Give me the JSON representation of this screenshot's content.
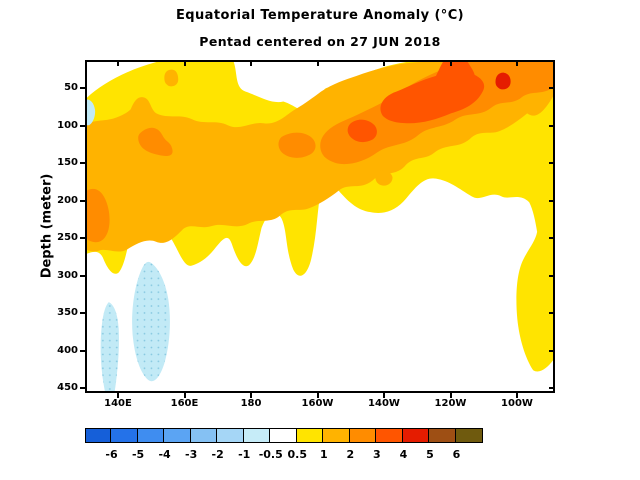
{
  "title": "Equatorial Temperature Anomaly (°C)",
  "subtitle": "Pentad centered on 27 JUN 2018",
  "y_axis": {
    "label": "Depth (meter)",
    "ticks": [
      "50",
      "100",
      "150",
      "200",
      "250",
      "300",
      "350",
      "400",
      "450"
    ]
  },
  "x_axis": {
    "ticks": [
      "140E",
      "160E",
      "180",
      "160W",
      "140W",
      "120W",
      "100W"
    ]
  },
  "colorbar": {
    "labels": [
      "-6",
      "-5",
      "-4",
      "-3",
      "-2",
      "-1",
      "-0.5",
      "0.5",
      "1",
      "2",
      "3",
      "4",
      "5",
      "6"
    ],
    "colors": [
      "#155fd9",
      "#2472e9",
      "#3f8df0",
      "#5ba4f3",
      "#85c1f3",
      "#a5d6f6",
      "#c6ecf8",
      "#ffffff",
      "#ffe400",
      "#ffb300",
      "#ff8c00",
      "#ff5500",
      "#e51c00",
      "#9e4f14",
      "#6f5a0e"
    ]
  },
  "colors": {
    "white": "#ffffff",
    "yellow": "#ffe400",
    "orange": "#ffb300",
    "orange2": "#ff8c00",
    "orange3": "#ff5500",
    "red": "#e51c00",
    "pale_blue": "#c2eaf6"
  },
  "chart_data": {
    "type": "filled_contour",
    "title": "Equatorial Temperature Anomaly (°C)",
    "subtitle": "Pentad centered on 27 JUN 2018",
    "units": "°C",
    "ylabel": "Depth (meter)",
    "y_ticks": [
      50,
      100,
      150,
      200,
      250,
      300,
      350,
      400,
      450
    ],
    "y_range_approx_m": [
      10,
      455
    ],
    "x_ticks": [
      "140E",
      "160E",
      "180",
      "160W",
      "140W",
      "120W",
      "100W"
    ],
    "x_range_approx": [
      "130E",
      "95W"
    ],
    "contour_levels": [
      -6,
      -5,
      -4,
      -3,
      -2,
      -1,
      -0.5,
      0.5,
      1,
      2,
      3,
      4,
      5,
      6
    ],
    "palette": [
      "#155fd9",
      "#2472e9",
      "#3f8df0",
      "#5ba4f3",
      "#85c1f3",
      "#a5d6f6",
      "#c6ecf8",
      "#ffffff",
      "#ffe400",
      "#ffb300",
      "#ff8c00",
      "#ff5500",
      "#e51c00",
      "#9e4f14",
      "#6f5a0e"
    ],
    "legend_position": "bottom horizontal color bar",
    "grid": false,
    "features": [
      {
        "name": "broad warm anomaly band sloping upward to the east",
        "value_c": "0.5 to 3",
        "lon": "130E-95W",
        "depth_m": "0-260 in west rising to 0-130 in east"
      },
      {
        "name": "strong warm core",
        "value_c": "3 to 4",
        "lon": "145W-112W",
        "depth_m": "40-120"
      },
      {
        "name": "peak warm spot",
        "value_c": "4 to 5",
        "lon": "~118W",
        "depth_m": "60-90"
      },
      {
        "name": "secondary 3-4 blob",
        "value_c": "3 to 4",
        "lon": "~158W",
        "depth_m": "115-140"
      },
      {
        "name": "2-3 patches in west-central band",
        "value_c": "2 to 3",
        "lon": "140E-175W",
        "depth_m": "125-240"
      },
      {
        "name": "surface warm patches reaching top near east",
        "value_c": "2 to 3",
        "lon": "112W-100W",
        "depth_m": "0-35"
      },
      {
        "name": "weak cool sliver at western boundary",
        "value_c": "-1 to -0.5",
        "lon": "~130E",
        "depth_m": "95-125"
      },
      {
        "name": "deep cool patches (stippled)",
        "value_c": "-1 to -0.5",
        "lon": "135E-158E",
        "depth_m": "265-455"
      },
      {
        "name": "deep warm blob at eastern boundary",
        "value_c": "0.5 to 1",
        "lon": "100W-95W",
        "depth_m": "250-380"
      }
    ]
  }
}
